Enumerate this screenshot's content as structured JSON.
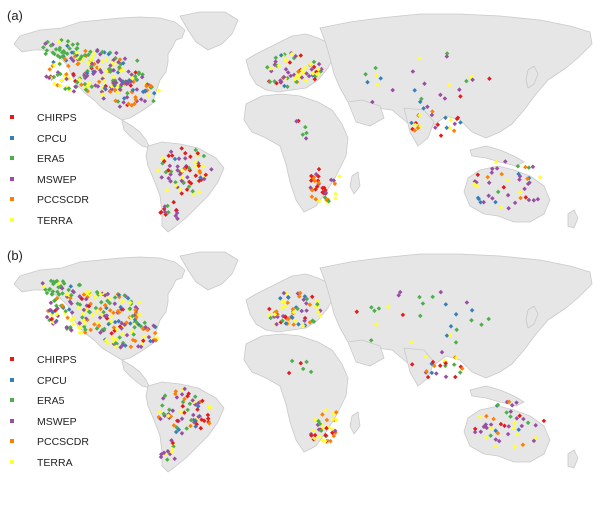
{
  "panels": [
    {
      "label": "(a)"
    },
    {
      "label": "(b)"
    }
  ],
  "legend": [
    {
      "name": "CHIRPS",
      "color": "#e41a1c"
    },
    {
      "name": "CPCU",
      "color": "#377eb8"
    },
    {
      "name": "ERA5",
      "color": "#4daf4a"
    },
    {
      "name": "MSWEP",
      "color": "#984ea3"
    },
    {
      "name": "PCCSCDR",
      "color": "#ff7f00"
    },
    {
      "name": "TERRA",
      "color": "#ffff33"
    }
  ]
}
